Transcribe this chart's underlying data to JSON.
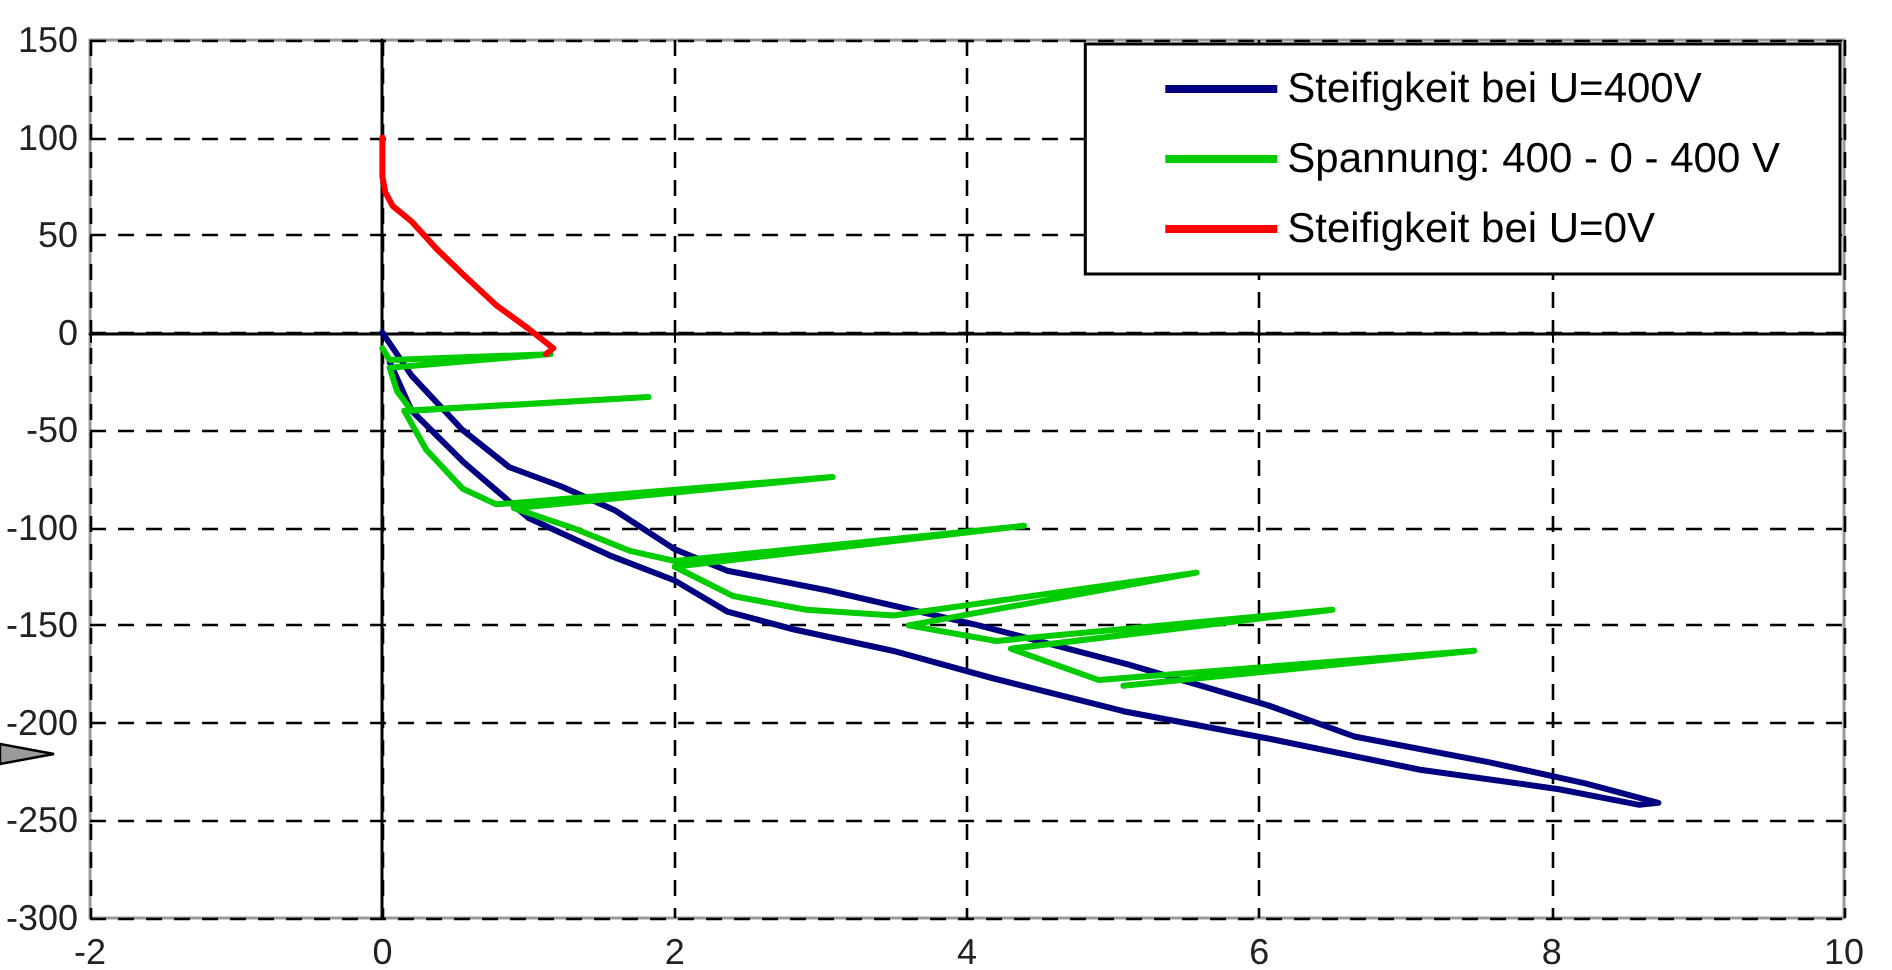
{
  "chart_data": {
    "type": "line",
    "xlim": [
      -2,
      10
    ],
    "ylim": [
      -300,
      150
    ],
    "xticks": [
      -2,
      0,
      2,
      4,
      6,
      8,
      10
    ],
    "yticks": [
      -300,
      -250,
      -200,
      -150,
      -100,
      -50,
      0,
      50,
      100,
      150
    ],
    "grid": true,
    "legend": "top right",
    "marker": "none",
    "line_style": "solid",
    "series": [
      {
        "name": "Steifigkeit bei U=400V",
        "color": "#000080",
        "x": [
          0,
          0.2,
          0.55,
          0.87,
          1.23,
          1.59,
          2.0,
          2.36,
          3.04,
          4.08,
          5.1,
          6.06,
          6.65,
          7.56,
          8.23,
          8.73,
          8.6,
          8.05,
          7.1,
          6.06,
          5.07,
          4.17,
          3.49,
          2.81,
          2.36,
          2.0,
          1.55,
          1.0,
          0.55,
          0.2,
          0.05
        ],
        "values": [
          0,
          -22,
          -50,
          -69,
          -79,
          -91,
          -111,
          -122,
          -132,
          -150,
          -170,
          -191,
          -207,
          -220,
          -231,
          -241,
          -242,
          -234,
          -224,
          -208,
          -194,
          -177,
          -163,
          -152,
          -143,
          -127,
          -114,
          -95,
          -66,
          -40,
          -15
        ]
      },
      {
        "name": "Spannung: 400 - 0 - 400 V",
        "color": "#00cc00",
        "x": [
          0,
          0.05,
          1.15,
          0.05,
          0.1,
          0.2,
          1.82,
          0.15,
          0.3,
          0.55,
          0.78,
          3.08,
          0.9,
          1.3,
          1.7,
          2.0,
          4.39,
          2.0,
          2.4,
          2.9,
          3.5,
          5.57,
          3.6,
          4.2,
          6.5,
          4.3,
          4.9,
          7.47,
          5.07
        ],
        "values": [
          -8,
          -14,
          -11,
          -18,
          -30,
          -40,
          -33,
          -40,
          -60,
          -80,
          -88,
          -74,
          -90,
          -100,
          -112,
          -117,
          -99,
          -120,
          -135,
          -142,
          -145,
          -123,
          -150,
          -158,
          -142,
          -162,
          -178,
          -163,
          -181
        ]
      },
      {
        "name": "Steifigkeit bei U=0V",
        "color": "#ff0000",
        "x": [
          0,
          0,
          0.02,
          0.07,
          0.2,
          0.37,
          0.55,
          0.78,
          1.0,
          1.17,
          1.12
        ],
        "values": [
          100,
          80,
          72,
          65,
          57,
          43,
          30,
          14,
          2,
          -8,
          -11
        ]
      }
    ]
  }
}
